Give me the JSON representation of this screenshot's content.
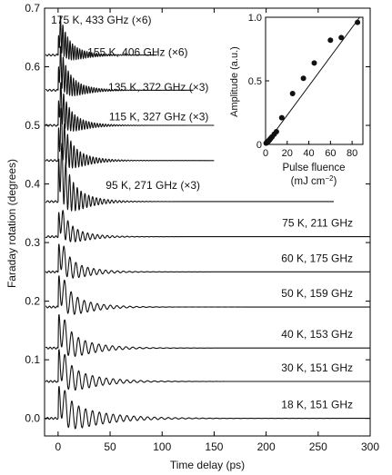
{
  "chart_data": [
    {
      "type": "line",
      "xlabel": "Time delay (ps)",
      "ylabel": "Faraday rotation (degrees)",
      "xlim": [
        -13,
        300
      ],
      "ylim": [
        -0.03,
        0.7
      ],
      "x_ticks": [
        0,
        50,
        100,
        150,
        200,
        250,
        300
      ],
      "x_tick_labels": [
        "0",
        "50",
        "100",
        "150",
        "200",
        "250",
        "300"
      ],
      "y_ticks": [
        0.0,
        0.1,
        0.2,
        0.3,
        0.4,
        0.5,
        0.6,
        0.7
      ],
      "y_tick_labels": [
        "0.0",
        "0.1",
        "0.2",
        "0.3",
        "0.4",
        "0.5",
        "0.6",
        "0.7"
      ],
      "grid": false,
      "series": [
        {
          "name": "18 K, 151 GHz",
          "temperature_K": 18,
          "frequency_GHz": 151,
          "baseline": 0.0,
          "peak_amplitude": 0.035,
          "end_ps": 300
        },
        {
          "name": "30 K, 151 GHz",
          "temperature_K": 30,
          "frequency_GHz": 151,
          "baseline": 0.063,
          "peak_amplitude": 0.035,
          "end_ps": 300
        },
        {
          "name": "40 K, 153 GHz",
          "temperature_K": 40,
          "frequency_GHz": 153,
          "baseline": 0.12,
          "peak_amplitude": 0.037,
          "end_ps": 300
        },
        {
          "name": "50 K, 159 GHz",
          "temperature_K": 50,
          "frequency_GHz": 159,
          "baseline": 0.19,
          "peak_amplitude": 0.035,
          "end_ps": 300
        },
        {
          "name": "60 K, 175 GHz",
          "temperature_K": 60,
          "frequency_GHz": 175,
          "baseline": 0.25,
          "peak_amplitude": 0.032,
          "end_ps": 300
        },
        {
          "name": "75 K, 211 GHz",
          "temperature_K": 75,
          "frequency_GHz": 211,
          "baseline": 0.31,
          "peak_amplitude": 0.03,
          "end_ps": 300
        },
        {
          "name": "95 K, 271 GHz (×3)",
          "temperature_K": 95,
          "frequency_GHz": 271,
          "scale": "×3",
          "baseline": 0.37,
          "peak_amplitude": 0.06,
          "end_ps": 265
        },
        {
          "name": "115 K, 327 GHz (×3)",
          "temperature_K": 115,
          "frequency_GHz": 327,
          "scale": "×3",
          "baseline": 0.44,
          "peak_amplitude": 0.05,
          "end_ps": 150
        },
        {
          "name": "135 K, 372 GHz (×3)",
          "temperature_K": 135,
          "frequency_GHz": 372,
          "scale": "×3",
          "baseline": 0.5,
          "peak_amplitude": 0.04,
          "end_ps": 150
        },
        {
          "name": "155 K, 406 GHz (×6)",
          "temperature_K": 155,
          "frequency_GHz": 406,
          "scale": "×6",
          "baseline": 0.56,
          "peak_amplitude": 0.04,
          "end_ps": 130
        },
        {
          "name": "175 K, 433 GHz (×6)",
          "temperature_K": 175,
          "frequency_GHz": 433,
          "scale": "×6",
          "baseline": 0.62,
          "peak_amplitude": 0.035,
          "end_ps": 95
        }
      ]
    },
    {
      "type": "scatter",
      "xlabel_line1": "Pulse fluence",
      "xlabel_line2": "(mJ cm",
      "xlabel_sup": "−2",
      "xlabel_close": ")",
      "ylabel": "Amplitude (a.u.)",
      "xlim": [
        0,
        90
      ],
      "ylim": [
        0,
        1.0
      ],
      "x_ticks": [
        0,
        20,
        40,
        60,
        80
      ],
      "x_tick_labels": [
        "0",
        "20",
        "40",
        "60",
        "80"
      ],
      "y_ticks": [
        0.0,
        0.5,
        1.0
      ],
      "y_tick_labels": [
        "0",
        "0.5",
        "1.0"
      ],
      "points": {
        "x": [
          0.5,
          1,
          1.5,
          2,
          2.5,
          3,
          3.5,
          4,
          5,
          6,
          8,
          10,
          15,
          25,
          35,
          45,
          60,
          70,
          85
        ],
        "y": [
          0.01,
          0.015,
          0.02,
          0.02,
          0.025,
          0.03,
          0.035,
          0.04,
          0.05,
          0.06,
          0.08,
          0.1,
          0.21,
          0.4,
          0.52,
          0.64,
          0.82,
          0.84,
          0.96
        ]
      },
      "fit_line": {
        "x": [
          0,
          87
        ],
        "y": [
          0,
          1.0
        ]
      }
    }
  ]
}
